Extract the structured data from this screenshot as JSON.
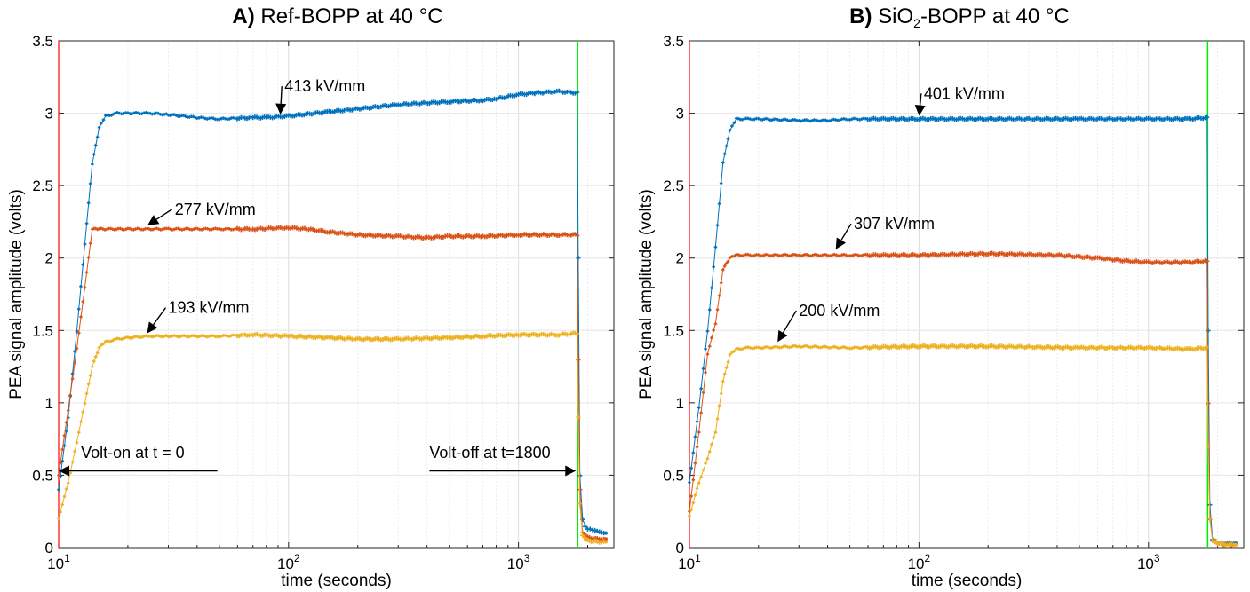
{
  "figure": {
    "colors": {
      "series_413": "#0072BD",
      "series_401": "#0072BD",
      "series_277": "#D95319",
      "series_307": "#D95319",
      "series_193": "#EDB120",
      "series_200": "#EDB120",
      "volt_on_line": "#FF0000",
      "volt_off_line": "#00EE00",
      "grid": "#e6e6e6"
    }
  },
  "chart_data": [
    {
      "type": "line",
      "title_prefix": "A)",
      "title_main": "Ref-BOPP at 40 °C",
      "xlabel": "time (seconds)",
      "ylabel": "PEA signal amplitude (volts)",
      "xscale": "log",
      "xlim": [
        10,
        2600
      ],
      "ylim": [
        0,
        3.5
      ],
      "x_tick_labels": [
        {
          "base": "10",
          "exp": "1"
        },
        {
          "base": "10",
          "exp": "2"
        },
        {
          "base": "10",
          "exp": "3"
        }
      ],
      "y_tick_labels": [
        "0",
        "0.5",
        "1",
        "1.5",
        "2",
        "2.5",
        "3",
        "3.5"
      ],
      "grid": true,
      "volt_on_time": 10,
      "volt_off_time": 1810,
      "series": [
        {
          "label": "413 kV/mm",
          "color_key": "series_413",
          "x": [
            10,
            11,
            12,
            13,
            14,
            15,
            16,
            18,
            20,
            25,
            30,
            40,
            50,
            70,
            80,
            100,
            150,
            200,
            300,
            500,
            700,
            800,
            1000,
            1200,
            1500,
            1800,
            1820,
            1850,
            1900,
            1950,
            2000,
            2100,
            2200,
            2300,
            2400
          ],
          "y": [
            0.4,
            0.9,
            1.5,
            2.1,
            2.65,
            2.9,
            2.98,
            3.0,
            3.0,
            3.0,
            2.99,
            2.97,
            2.96,
            2.97,
            2.97,
            2.98,
            3.01,
            3.03,
            3.06,
            3.08,
            3.09,
            3.1,
            3.13,
            3.14,
            3.15,
            3.14,
            2.0,
            0.5,
            0.2,
            0.15,
            0.13,
            0.12,
            0.11,
            0.1,
            0.1
          ]
        },
        {
          "label": "277 kV/mm",
          "color_key": "series_277",
          "x": [
            10,
            11,
            12,
            13,
            14,
            15,
            20,
            30,
            50,
            70,
            100,
            120,
            150,
            200,
            300,
            400,
            500,
            700,
            1000,
            1500,
            1800,
            1820,
            1850,
            1900,
            2000,
            2200,
            2400
          ],
          "y": [
            0.5,
            0.95,
            1.38,
            1.8,
            2.2,
            2.2,
            2.2,
            2.2,
            2.2,
            2.2,
            2.21,
            2.2,
            2.18,
            2.16,
            2.15,
            2.14,
            2.15,
            2.15,
            2.16,
            2.16,
            2.16,
            1.3,
            0.4,
            0.1,
            0.07,
            0.06,
            0.06
          ]
        },
        {
          "label": "193 kV/mm",
          "color_key": "series_193",
          "x": [
            10,
            11,
            12,
            13,
            14,
            15,
            16,
            18,
            20,
            25,
            30,
            50,
            70,
            100,
            150,
            200,
            300,
            500,
            700,
            1000,
            1500,
            1800,
            1820,
            1850,
            1900,
            2000,
            2200,
            2400
          ],
          "y": [
            0.2,
            0.45,
            0.73,
            1.0,
            1.25,
            1.38,
            1.42,
            1.44,
            1.45,
            1.46,
            1.46,
            1.46,
            1.47,
            1.46,
            1.45,
            1.44,
            1.44,
            1.45,
            1.46,
            1.47,
            1.47,
            1.48,
            0.9,
            0.3,
            0.08,
            0.05,
            0.04,
            0.04
          ]
        }
      ],
      "annotations": [
        {
          "text": "413 kV/mm",
          "arrow_to": [
            92,
            2.98
          ],
          "text_at": [
            96,
            3.15
          ]
        },
        {
          "text": "277 kV/mm",
          "arrow_to": [
            24,
            2.22
          ],
          "text_at": [
            32,
            2.3
          ]
        },
        {
          "text": "193 kV/mm",
          "arrow_to": [
            24,
            1.47
          ],
          "text_at": [
            30,
            1.62
          ]
        },
        {
          "text": "Volt-on at t = 0",
          "arrow_to": [
            10,
            0.53
          ],
          "text_at": [
            12.5,
            0.57
          ]
        },
        {
          "text": "Volt-off at t=1800",
          "arrow_to": [
            1810,
            0.53
          ],
          "text_at": [
            410,
            0.57
          ]
        }
      ]
    },
    {
      "type": "line",
      "title_prefix": "B)",
      "title_main_pre": "SiO",
      "title_main_sub": "2",
      "title_main_post": "-BOPP at 40 °C",
      "xlabel": "time (seconds)",
      "ylabel": "PEA signal amplitude (volts)",
      "xscale": "log",
      "xlim": [
        10,
        2600
      ],
      "ylim": [
        0,
        3.5
      ],
      "x_tick_labels": [
        {
          "base": "10",
          "exp": "1"
        },
        {
          "base": "10",
          "exp": "2"
        },
        {
          "base": "10",
          "exp": "3"
        }
      ],
      "y_tick_labels": [
        "0",
        "0.5",
        "1",
        "1.5",
        "2",
        "2.5",
        "3",
        "3.5"
      ],
      "grid": true,
      "volt_on_time": 10,
      "volt_off_time": 1810,
      "series": [
        {
          "label": "401 kV/mm",
          "color_key": "series_401",
          "x": [
            10,
            11,
            12,
            13,
            14,
            15,
            16,
            18,
            20,
            30,
            40,
            50,
            100,
            200,
            500,
            1000,
            1500,
            1800,
            1820,
            1850,
            1900,
            2000,
            2200,
            2400
          ],
          "y": [
            0.45,
            0.97,
            1.5,
            2.08,
            2.66,
            2.88,
            2.96,
            2.96,
            2.96,
            2.95,
            2.95,
            2.96,
            2.96,
            2.96,
            2.96,
            2.96,
            2.96,
            2.97,
            1.5,
            0.3,
            0.06,
            0.03,
            0.03,
            0.03
          ]
        },
        {
          "label": "307 kV/mm",
          "color_key": "series_307",
          "x": [
            10,
            11,
            12,
            13,
            14,
            15,
            16,
            18,
            20,
            30,
            50,
            100,
            200,
            400,
            600,
            800,
            1000,
            1500,
            1800,
            1820,
            1850,
            1900,
            2000,
            2200,
            2400
          ],
          "y": [
            0.25,
            0.8,
            1.34,
            1.55,
            1.92,
            2.0,
            2.02,
            2.02,
            2.02,
            2.02,
            2.02,
            2.02,
            2.03,
            2.02,
            2.0,
            1.98,
            1.97,
            1.97,
            1.98,
            1.0,
            0.2,
            0.05,
            0.03,
            0.02,
            0.02
          ]
        },
        {
          "label": "200 kV/mm",
          "color_key": "series_200",
          "x": [
            10,
            11,
            12,
            13,
            14,
            15,
            16,
            18,
            20,
            30,
            50,
            100,
            200,
            500,
            1000,
            1500,
            1800,
            1820,
            1850,
            1900,
            2000,
            2200,
            2400
          ],
          "y": [
            0.22,
            0.45,
            0.62,
            0.8,
            1.15,
            1.33,
            1.37,
            1.38,
            1.38,
            1.39,
            1.38,
            1.39,
            1.39,
            1.38,
            1.38,
            1.37,
            1.38,
            0.7,
            0.2,
            0.05,
            0.03,
            0.02,
            0.02
          ]
        }
      ],
      "annotations": [
        {
          "text": "401 kV/mm",
          "arrow_to": [
            100,
            2.97
          ],
          "text_at": [
            105,
            3.1
          ]
        },
        {
          "text": "307 kV/mm",
          "arrow_to": [
            43,
            2.05
          ],
          "text_at": [
            52,
            2.2
          ]
        },
        {
          "text": "200 kV/mm",
          "arrow_to": [
            24,
            1.41
          ],
          "text_at": [
            30,
            1.6
          ]
        }
      ]
    }
  ]
}
